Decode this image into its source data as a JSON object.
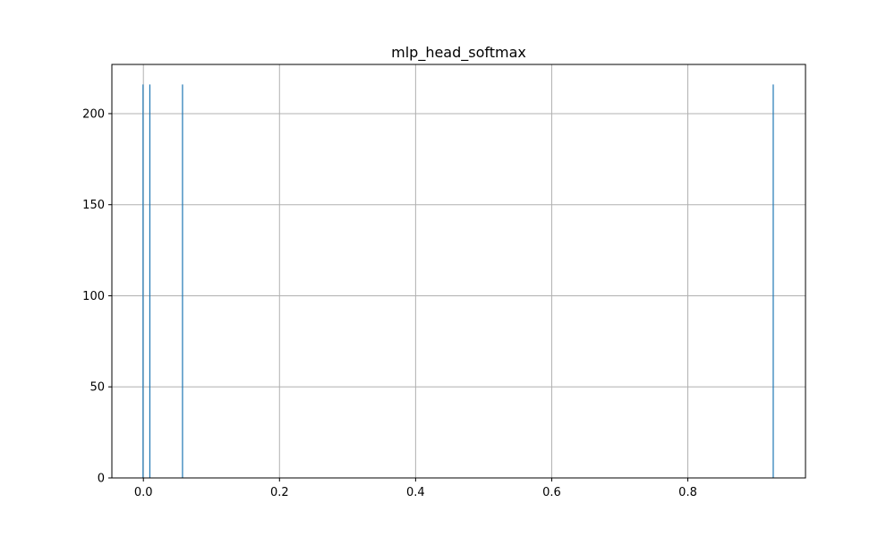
{
  "chart_data": {
    "type": "bar",
    "title": "mlp_head_softmax",
    "xlabel": "",
    "ylabel": "",
    "xlim": [
      -0.0463,
      0.9729
    ],
    "ylim": [
      0,
      227
    ],
    "x_ticks": [
      0.0,
      0.2,
      0.4,
      0.6,
      0.8
    ],
    "x_tick_labels": [
      "0.0",
      "0.2",
      "0.4",
      "0.6",
      "0.8"
    ],
    "y_ticks": [
      0,
      50,
      100,
      150,
      200
    ],
    "y_tick_labels": [
      "0",
      "50",
      "100",
      "150",
      "200"
    ],
    "grid": true,
    "bar_color": "#1f77b4",
    "series": [
      {
        "values": [
          {
            "x": -0.0005,
            "count": 216
          },
          {
            "x": 0.0095,
            "count": 216
          },
          {
            "x": 0.0575,
            "count": 216
          },
          {
            "x": 0.9255,
            "count": 216
          }
        ]
      }
    ]
  }
}
